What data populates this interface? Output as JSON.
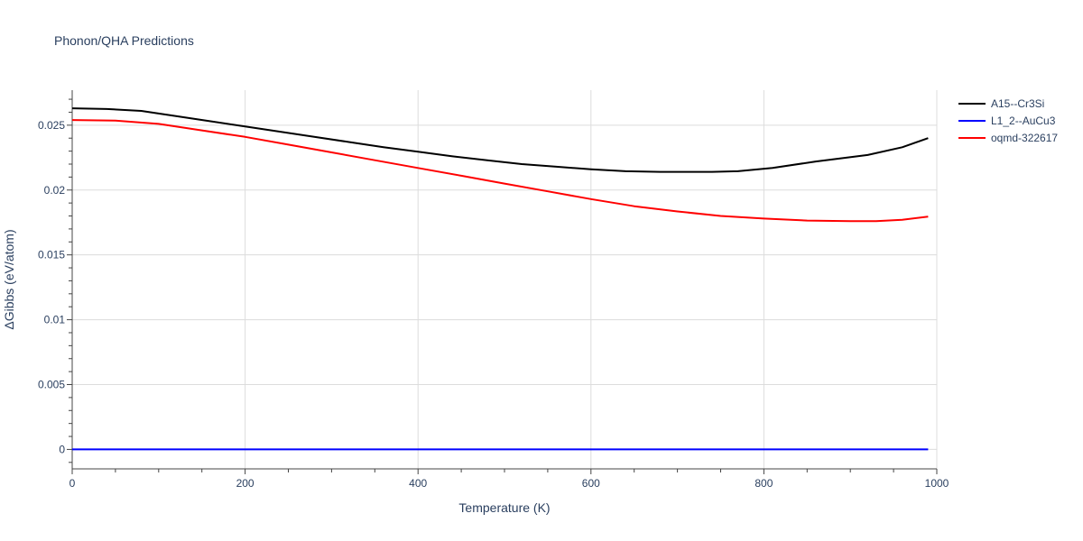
{
  "chart_data": {
    "type": "line",
    "title": "Phonon/QHA Predictions",
    "xlabel": "Temperature (K)",
    "ylabel": "ΔGibbs (eV/atom)",
    "xlim": [
      0,
      1000
    ],
    "ylim": [
      -0.0015,
      0.0277
    ],
    "x_ticks": [
      0,
      200,
      400,
      600,
      800,
      1000
    ],
    "x_tick_labels": [
      "0",
      "200",
      "400",
      "600",
      "800",
      "1000"
    ],
    "y_ticks": [
      0,
      0.005,
      0.01,
      0.015,
      0.02,
      0.025
    ],
    "y_tick_labels": [
      "0",
      "0.005",
      "0.01",
      "0.015",
      "0.02",
      "0.025"
    ],
    "grid": true,
    "legend_position": "top-right",
    "series": [
      {
        "name": "A15--Cr3Si",
        "color": "#000000",
        "x": [
          0,
          40,
          80,
          120,
          160,
          200,
          240,
          280,
          320,
          360,
          400,
          440,
          480,
          520,
          560,
          600,
          640,
          680,
          710,
          740,
          770,
          810,
          860,
          920,
          960,
          990
        ],
        "y": [
          0.0263,
          0.02625,
          0.0261,
          0.0257,
          0.0253,
          0.0249,
          0.0245,
          0.0241,
          0.0237,
          0.0233,
          0.02295,
          0.0226,
          0.0223,
          0.022,
          0.0218,
          0.0216,
          0.02145,
          0.0214,
          0.0214,
          0.0214,
          0.02145,
          0.0217,
          0.0222,
          0.0227,
          0.0233,
          0.024
        ]
      },
      {
        "name": "L1_2--AuCu3",
        "color": "#0000ff",
        "x": [
          0,
          990
        ],
        "y": [
          0,
          0
        ]
      },
      {
        "name": "oqmd-322617",
        "color": "#ff0000",
        "x": [
          0,
          50,
          100,
          150,
          200,
          250,
          300,
          350,
          400,
          450,
          500,
          550,
          600,
          650,
          700,
          750,
          800,
          850,
          900,
          930,
          960,
          990
        ],
        "y": [
          0.0254,
          0.02535,
          0.0251,
          0.0246,
          0.0241,
          0.0235,
          0.0229,
          0.0223,
          0.0217,
          0.0211,
          0.0205,
          0.0199,
          0.0193,
          0.01875,
          0.01835,
          0.018,
          0.0178,
          0.01765,
          0.0176,
          0.0176,
          0.0177,
          0.01795
        ]
      }
    ]
  }
}
